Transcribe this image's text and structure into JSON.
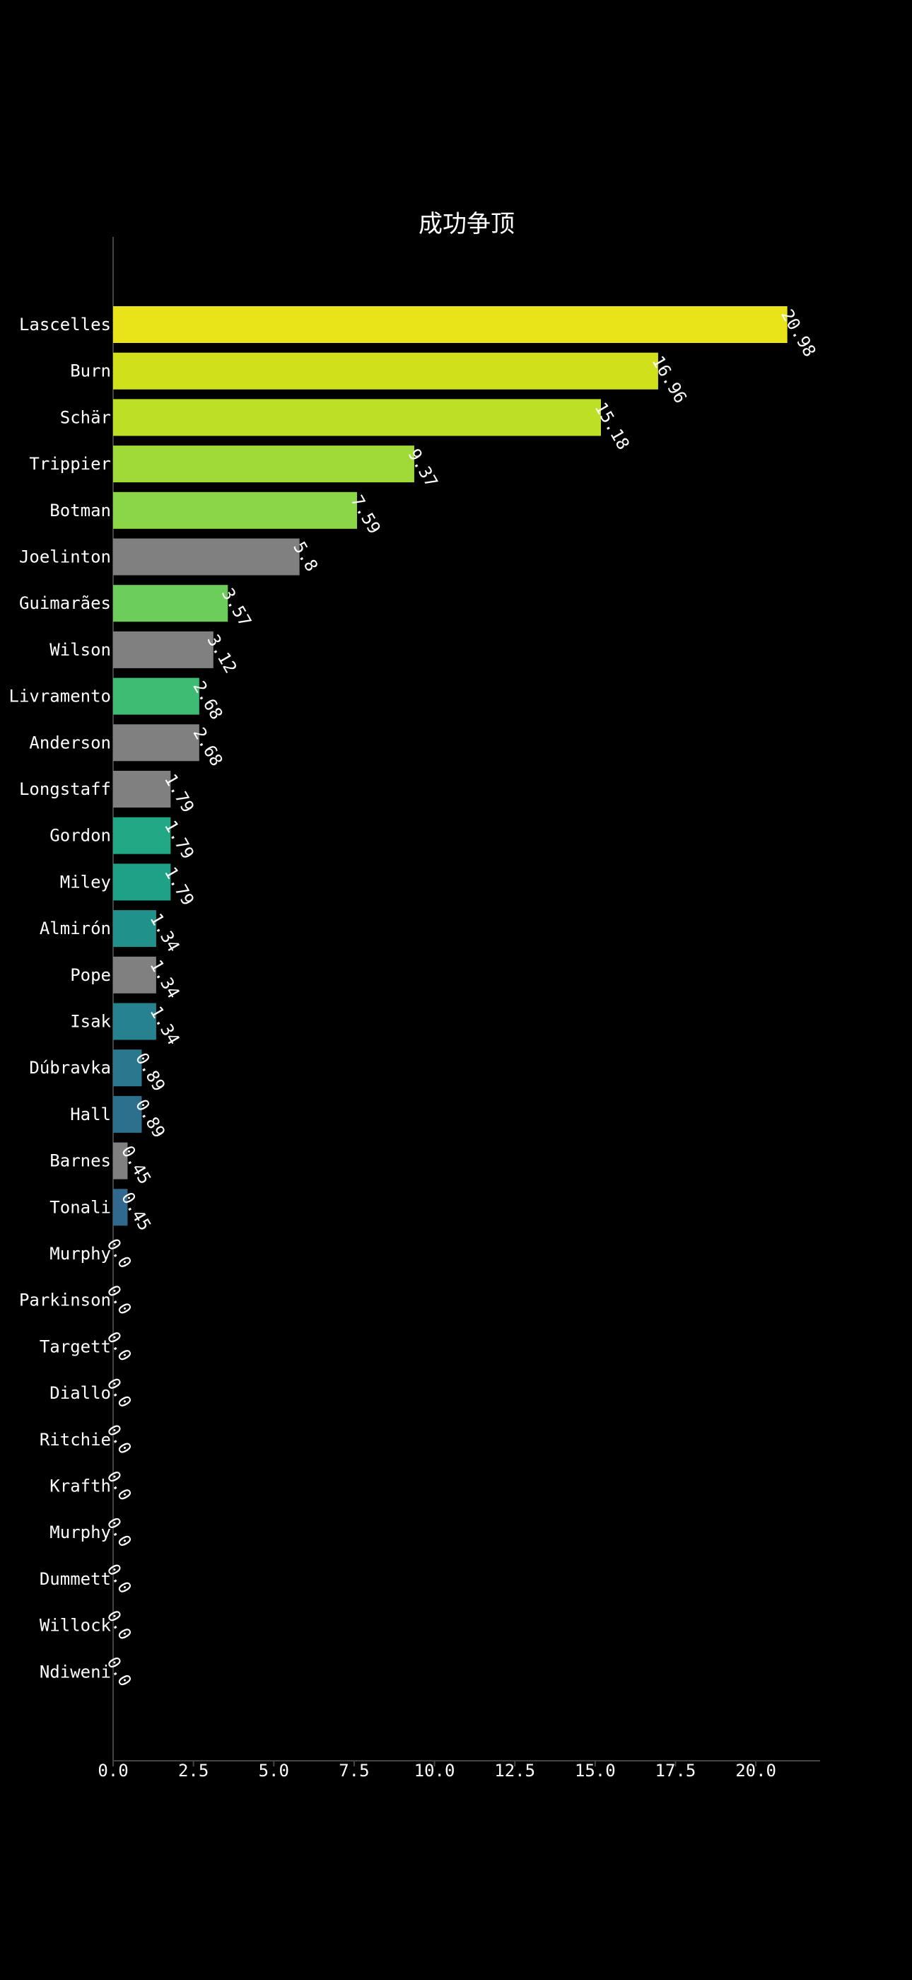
{
  "chart_data": {
    "type": "bar",
    "orientation": "horizontal",
    "title": "成功争顶",
    "xlabel": "",
    "ylabel": "",
    "xlim": [
      0,
      22
    ],
    "x_ticks": [
      0.0,
      2.5,
      5.0,
      7.5,
      10.0,
      12.5,
      15.0,
      17.5,
      20.0
    ],
    "x_tick_labels": [
      "0.0",
      "2.5",
      "5.0",
      "7.5",
      "10.0",
      "12.5",
      "15.0",
      "17.5",
      "20.0"
    ],
    "grid": false,
    "legend": "none",
    "background": "#000000",
    "text_color": "#ffffff",
    "axis_color": "#444444",
    "categories": [
      "Lascelles",
      "Burn",
      "Schär",
      "Trippier",
      "Botman",
      "Joelinton",
      "Guimarães",
      "Wilson",
      "Livramento",
      "Anderson",
      "Longstaff",
      "Gordon",
      "Miley",
      "Almirón",
      "Pope",
      "Isak",
      "Dúbravka",
      "Hall",
      "Barnes",
      "Tonali",
      "Murphy",
      "Parkinson",
      "Targett",
      "Diallo",
      "Ritchie",
      "Krafth",
      "Murphy",
      "Dummett",
      "Willock",
      "Ndiweni"
    ],
    "values": [
      20.98,
      16.96,
      15.18,
      9.37,
      7.59,
      5.8,
      3.57,
      3.12,
      2.68,
      2.68,
      1.79,
      1.79,
      1.79,
      1.34,
      1.34,
      1.34,
      0.89,
      0.89,
      0.45,
      0.45,
      0.0,
      0.0,
      0.0,
      0.0,
      0.0,
      0.0,
      0.0,
      0.0,
      0.0,
      0.0
    ],
    "value_labels": [
      "20.98",
      "16.96",
      "15.18",
      "9.37",
      "7.59",
      "5.8",
      "3.57",
      "3.12",
      "2.68",
      "2.68",
      "1.79",
      "1.79",
      "1.79",
      "1.34",
      "1.34",
      "1.34",
      "0.89",
      "0.89",
      "0.45",
      "0.45",
      "0.0",
      "0.0",
      "0.0",
      "0.0",
      "0.0",
      "0.0",
      "0.0",
      "0.0",
      "0.0",
      "0.0"
    ],
    "colors": [
      "#e8e419",
      "#d0e11c",
      "#bddf26",
      "#a0da39",
      "#8bd646",
      "#808080",
      "#6ccd5a",
      "#808080",
      "#3fbc73",
      "#808080",
      "#808080",
      "#22a785",
      "#1fa188",
      "#21918c",
      "#808080",
      "#26828e",
      "#2a788e",
      "#2d708e",
      "#808080",
      "#31688e",
      "#808080",
      "#808080",
      "#808080",
      "#808080",
      "#808080",
      "#808080",
      "#808080",
      "#808080",
      "#808080",
      "#808080"
    ]
  }
}
